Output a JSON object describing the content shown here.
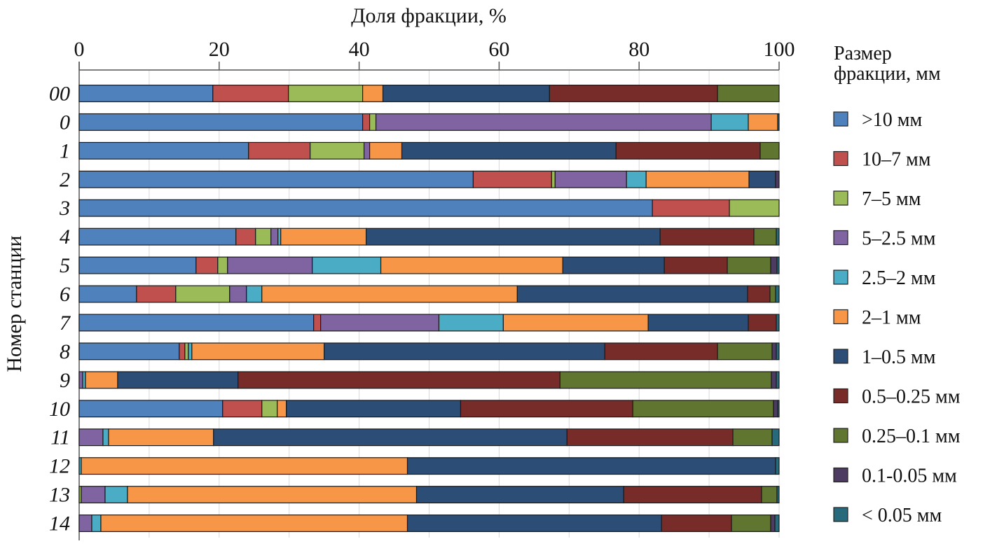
{
  "chart_data": {
    "type": "bar",
    "orientation": "horizontal",
    "stacked": true,
    "title": "",
    "xlabel": "Доля фракции, %",
    "ylabel": "Номер станции",
    "xlim": [
      0,
      100
    ],
    "x_ticks": [
      "0",
      "20",
      "40",
      "60",
      "80",
      "100"
    ],
    "x_tick_values": [
      0,
      20,
      40,
      60,
      80,
      100
    ],
    "x_axis_position": "top",
    "grid": true,
    "legend_title": "Размер фракции, мм",
    "legend_title_lines": [
      "Размер",
      "фракции, мм"
    ],
    "legend_position": "right",
    "categories": [
      "00",
      "0",
      "1",
      "2",
      "3",
      "4",
      "5",
      "6",
      "7",
      "8",
      "9",
      "10",
      "11",
      "12",
      "13",
      "14"
    ],
    "series": [
      {
        "name": ">10 мм",
        "color": "#4f81bd",
        "values": [
          19.1,
          40.5,
          24.2,
          56.3,
          81.9,
          22.4,
          16.7,
          8.2,
          33.5,
          14.3,
          0,
          20.5,
          0,
          0,
          0,
          0
        ]
      },
      {
        "name": "10–7 мм",
        "color": "#c0504d",
        "values": [
          10.8,
          1.0,
          8.8,
          11.2,
          11.0,
          2.8,
          3.1,
          5.6,
          1.0,
          0.8,
          0,
          5.6,
          0,
          0,
          0,
          0
        ]
      },
      {
        "name": "7–5 мм",
        "color": "#9bbb59",
        "values": [
          10.6,
          0.9,
          7.7,
          0.5,
          7.1,
          2.2,
          1.4,
          7.7,
          0,
          0.5,
          0,
          2.2,
          0,
          0,
          0.3,
          0
        ]
      },
      {
        "name": "5–2.5 мм",
        "color": "#8064a2",
        "values": [
          0,
          47.9,
          0.8,
          10.2,
          0,
          1.0,
          12.1,
          2.4,
          16.9,
          0,
          0.5,
          0,
          3.4,
          0,
          3.4,
          1.8
        ]
      },
      {
        "name": "2.5–2 мм",
        "color": "#4bacc6",
        "values": [
          0,
          5.3,
          0,
          2.8,
          0,
          0.4,
          9.8,
          2.2,
          9.2,
          0.5,
          0.4,
          0,
          0.8,
          0.3,
          3.2,
          1.3
        ]
      },
      {
        "name": "2–1 мм",
        "color": "#f79646",
        "values": [
          2.9,
          4.2,
          4.6,
          14.7,
          0,
          12.2,
          26.0,
          36.5,
          20.7,
          18.9,
          4.6,
          1.3,
          15.0,
          46.6,
          41.3,
          43.8
        ]
      },
      {
        "name": "1–0.5 мм",
        "color": "#2c4d75",
        "values": [
          23.8,
          0,
          30.6,
          3.8,
          0,
          42.0,
          14.5,
          32.9,
          14.3,
          40.1,
          17.2,
          24.9,
          50.5,
          52.6,
          29.6,
          36.3
        ]
      },
      {
        "name": "0.5–0.25 мм",
        "color": "#772c2a",
        "values": [
          24.0,
          0,
          20.6,
          0,
          0,
          13.4,
          9.0,
          3.2,
          4.0,
          16.1,
          46.0,
          24.6,
          23.7,
          0,
          19.7,
          10.0
        ]
      },
      {
        "name": "0.25–0.1 мм",
        "color": "#5f7530",
        "values": [
          8.8,
          0,
          2.7,
          0,
          0,
          3.2,
          6.2,
          0.8,
          0,
          7.8,
          30.2,
          20.1,
          5.6,
          0,
          2.2,
          5.6
        ]
      },
      {
        "name": "0.1-0.05 мм",
        "color": "#4d3b62",
        "values": [
          0,
          0,
          0,
          0.5,
          0,
          0,
          0.9,
          0,
          0,
          0.6,
          0.7,
          0.6,
          0,
          0,
          0,
          0.6
        ]
      },
      {
        "name": "< 0.05 мм",
        "color": "#276a7c",
        "values": [
          0,
          0.2,
          0,
          0,
          0,
          0.4,
          0.3,
          0.5,
          0.4,
          0.4,
          0.4,
          0.2,
          1.0,
          0.5,
          0.3,
          0.6
        ]
      }
    ]
  }
}
